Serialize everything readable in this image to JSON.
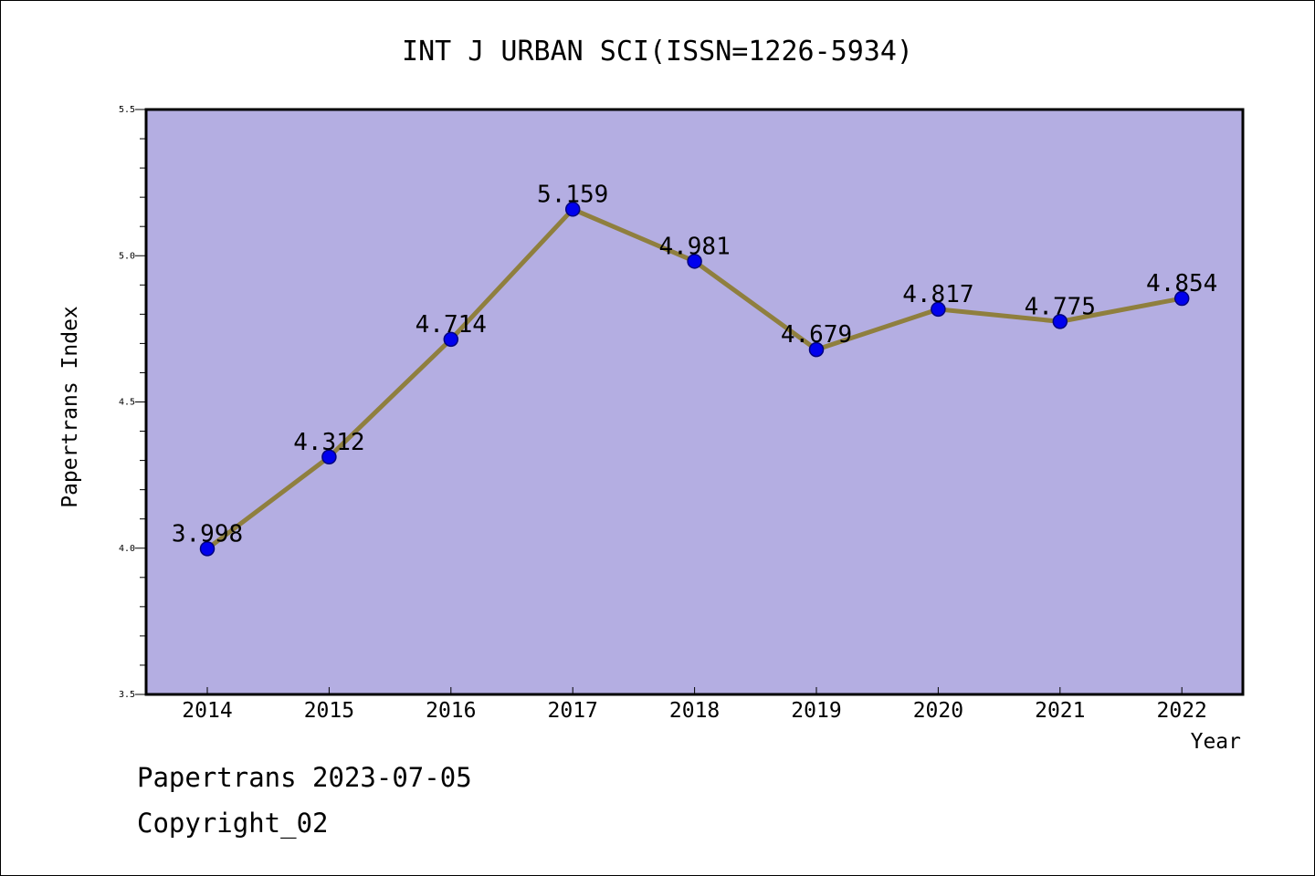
{
  "chart_data": {
    "type": "line",
    "title": "INT J URBAN SCI(ISSN=1226-5934)",
    "xlabel": "Year",
    "ylabel": "Papertrans Index",
    "categories": [
      "2014",
      "2015",
      "2016",
      "2017",
      "2018",
      "2019",
      "2020",
      "2021",
      "2022"
    ],
    "values": [
      3.998,
      4.312,
      4.714,
      5.159,
      4.981,
      4.679,
      4.817,
      4.775,
      4.854
    ],
    "data_labels": [
      "3.998",
      "4.312",
      "4.714",
      "5.159",
      "4.981",
      "4.679",
      "4.817",
      "4.775",
      "4.854"
    ],
    "ylim": [
      3.5,
      5.5
    ],
    "y_ticks": [
      "3.5",
      "4.0",
      "4.5",
      "5.0",
      "5.5"
    ],
    "grid": false,
    "legend": "none",
    "colors": {
      "plot_background": "#b4aee2",
      "line": "#8f7f3e",
      "marker": "#0000ee",
      "marker_edge": "#000080"
    }
  },
  "footer": {
    "line1": "Papertrans 2023-07-05",
    "line2": "Copyright_02"
  }
}
